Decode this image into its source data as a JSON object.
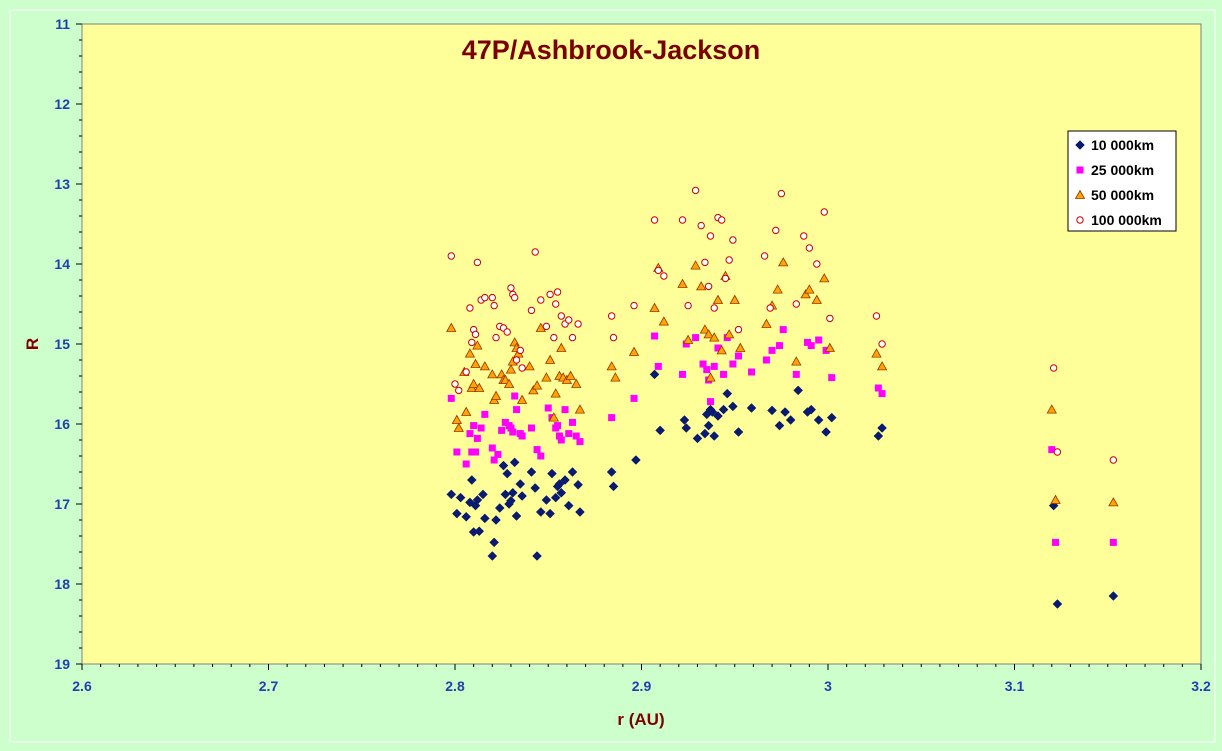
{
  "chart_data": {
    "type": "scatter",
    "title": "47P/Ashbrook-Jackson",
    "xlabel": "r (AU)",
    "ylabel": "R",
    "xlim": [
      2.6,
      3.2
    ],
    "ylim": [
      11,
      19
    ],
    "y_inverted": true,
    "x_ticks": [
      "2.6",
      "2.7",
      "2.8",
      "2.9",
      "3",
      "3.1",
      "3.2"
    ],
    "y_ticks": [
      "11",
      "12",
      "13",
      "14",
      "15",
      "16",
      "17",
      "18",
      "19"
    ],
    "grid": false,
    "legend_position": "top-right",
    "series": [
      {
        "name": "10 000km",
        "marker": "diamond",
        "color": "#0a1a6e",
        "x": [
          2.798,
          2.801,
          2.803,
          2.806,
          2.808,
          2.809,
          2.81,
          2.811,
          2.812,
          2.813,
          2.815,
          2.816,
          2.82,
          2.821,
          2.822,
          2.824,
          2.826,
          2.827,
          2.828,
          2.829,
          2.83,
          2.831,
          2.832,
          2.833,
          2.835,
          2.836,
          2.841,
          2.843,
          2.844,
          2.846,
          2.849,
          2.851,
          2.852,
          2.854,
          2.855,
          2.856,
          2.857,
          2.859,
          2.861,
          2.863,
          2.866,
          2.867,
          2.884,
          2.885,
          2.897,
          2.907,
          2.91,
          2.923,
          2.924,
          2.93,
          2.934,
          2.935,
          2.936,
          2.937,
          2.938,
          2.939,
          2.941,
          2.944,
          2.946,
          2.949,
          2.952,
          2.959,
          2.97,
          2.974,
          2.977,
          2.98,
          2.984,
          2.989,
          2.991,
          2.995,
          2.999,
          3.002,
          3.027,
          3.029,
          3.121,
          3.123,
          3.153
        ],
        "y": [
          16.88,
          17.12,
          16.92,
          17.16,
          16.98,
          16.7,
          17.35,
          17.02,
          16.95,
          17.34,
          16.88,
          17.18,
          17.65,
          17.48,
          17.2,
          17.05,
          16.52,
          16.88,
          16.62,
          17.0,
          16.96,
          16.86,
          16.48,
          17.15,
          16.75,
          16.9,
          16.6,
          16.8,
          17.65,
          17.1,
          16.95,
          17.12,
          16.62,
          16.92,
          16.78,
          16.75,
          16.86,
          16.7,
          17.02,
          16.6,
          16.76,
          17.1,
          16.6,
          16.78,
          16.45,
          15.38,
          16.08,
          15.95,
          16.05,
          16.18,
          16.12,
          15.88,
          16.02,
          15.82,
          15.85,
          16.15,
          15.9,
          15.82,
          15.62,
          15.78,
          16.1,
          15.8,
          15.83,
          16.02,
          15.85,
          15.95,
          15.58,
          15.85,
          15.82,
          15.95,
          16.1,
          15.92,
          16.15,
          16.05,
          17.02,
          18.25,
          18.15
        ]
      },
      {
        "name": "25 000km",
        "marker": "square",
        "color": "#ff00ff",
        "x": [
          2.798,
          2.801,
          2.806,
          2.808,
          2.809,
          2.81,
          2.811,
          2.812,
          2.814,
          2.816,
          2.82,
          2.821,
          2.823,
          2.825,
          2.827,
          2.829,
          2.83,
          2.831,
          2.832,
          2.833,
          2.835,
          2.836,
          2.841,
          2.844,
          2.846,
          2.85,
          2.852,
          2.854,
          2.855,
          2.856,
          2.857,
          2.859,
          2.861,
          2.863,
          2.865,
          2.867,
          2.884,
          2.896,
          2.907,
          2.909,
          2.922,
          2.924,
          2.929,
          2.933,
          2.935,
          2.936,
          2.937,
          2.939,
          2.941,
          2.944,
          2.946,
          2.949,
          2.952,
          2.959,
          2.967,
          2.97,
          2.974,
          2.976,
          2.983,
          2.989,
          2.991,
          2.995,
          2.999,
          3.002,
          3.027,
          3.029,
          3.12,
          3.122,
          3.153
        ],
        "y": [
          15.68,
          16.35,
          16.5,
          16.12,
          16.35,
          16.02,
          16.35,
          16.18,
          16.05,
          15.88,
          16.3,
          16.45,
          16.38,
          16.08,
          15.98,
          16.02,
          16.05,
          16.1,
          15.65,
          15.82,
          16.12,
          16.15,
          16.05,
          16.32,
          16.4,
          15.8,
          15.92,
          16.05,
          16.02,
          16.15,
          16.2,
          15.82,
          16.12,
          15.98,
          16.15,
          16.22,
          15.92,
          15.68,
          14.9,
          15.28,
          15.38,
          15.0,
          14.92,
          15.25,
          15.32,
          15.45,
          15.72,
          15.28,
          15.05,
          15.38,
          14.92,
          15.25,
          15.15,
          15.35,
          15.2,
          15.08,
          15.02,
          14.82,
          15.38,
          14.98,
          15.02,
          14.95,
          15.08,
          15.42,
          15.55,
          15.62,
          16.32,
          17.48,
          17.48
        ]
      },
      {
        "name": "50 000km",
        "marker": "triangle",
        "color": "#ffa500",
        "x": [
          2.798,
          2.801,
          2.802,
          2.805,
          2.806,
          2.808,
          2.809,
          2.81,
          2.811,
          2.812,
          2.813,
          2.816,
          2.82,
          2.821,
          2.822,
          2.825,
          2.826,
          2.827,
          2.829,
          2.83,
          2.831,
          2.832,
          2.833,
          2.834,
          2.836,
          2.84,
          2.842,
          2.844,
          2.846,
          2.849,
          2.851,
          2.853,
          2.854,
          2.856,
          2.857,
          2.858,
          2.86,
          2.862,
          2.865,
          2.867,
          2.884,
          2.886,
          2.896,
          2.907,
          2.909,
          2.912,
          2.922,
          2.925,
          2.929,
          2.932,
          2.934,
          2.936,
          2.937,
          2.939,
          2.941,
          2.943,
          2.945,
          2.947,
          2.95,
          2.953,
          2.967,
          2.97,
          2.973,
          2.976,
          2.983,
          2.988,
          2.99,
          2.994,
          2.998,
          3.001,
          3.026,
          3.029,
          3.12,
          3.122,
          3.153
        ],
        "y": [
          14.8,
          15.95,
          16.05,
          15.35,
          15.85,
          15.12,
          15.55,
          15.5,
          15.25,
          15.02,
          15.55,
          15.28,
          15.38,
          15.7,
          15.65,
          15.38,
          15.45,
          15.45,
          15.5,
          15.32,
          15.22,
          14.98,
          15.05,
          15.12,
          15.7,
          15.28,
          15.58,
          15.52,
          14.8,
          15.42,
          15.2,
          15.92,
          15.62,
          15.4,
          15.05,
          15.42,
          15.45,
          15.4,
          15.5,
          15.82,
          15.28,
          15.42,
          15.1,
          14.55,
          14.05,
          14.72,
          14.25,
          14.95,
          14.02,
          14.28,
          14.82,
          14.88,
          15.42,
          14.92,
          14.45,
          15.08,
          14.15,
          14.88,
          14.45,
          15.05,
          14.75,
          14.52,
          14.32,
          13.98,
          15.22,
          14.38,
          14.32,
          14.45,
          14.18,
          15.05,
          15.12,
          15.28,
          15.82,
          16.95,
          16.98
        ]
      },
      {
        "name": "100 000km",
        "marker": "circle",
        "color": "#cc0000",
        "x": [
          2.798,
          2.8,
          2.802,
          2.806,
          2.808,
          2.809,
          2.81,
          2.811,
          2.812,
          2.814,
          2.816,
          2.82,
          2.821,
          2.822,
          2.824,
          2.826,
          2.828,
          2.83,
          2.831,
          2.832,
          2.833,
          2.835,
          2.836,
          2.841,
          2.843,
          2.846,
          2.849,
          2.851,
          2.853,
          2.854,
          2.855,
          2.857,
          2.859,
          2.861,
          2.863,
          2.866,
          2.884,
          2.885,
          2.896,
          2.907,
          2.909,
          2.912,
          2.922,
          2.925,
          2.929,
          2.932,
          2.934,
          2.936,
          2.937,
          2.939,
          2.941,
          2.943,
          2.945,
          2.947,
          2.949,
          2.952,
          2.966,
          2.969,
          2.972,
          2.975,
          2.983,
          2.987,
          2.99,
          2.994,
          2.998,
          3.001,
          3.026,
          3.029,
          3.121,
          3.123,
          3.153
        ],
        "y": [
          13.9,
          15.5,
          15.58,
          15.35,
          14.55,
          14.98,
          14.82,
          14.88,
          13.98,
          14.45,
          14.42,
          14.42,
          14.52,
          14.92,
          14.78,
          14.8,
          14.85,
          14.3,
          14.38,
          14.42,
          15.2,
          15.08,
          15.3,
          14.58,
          13.85,
          14.45,
          14.78,
          14.38,
          14.92,
          14.5,
          14.35,
          14.65,
          14.75,
          14.7,
          14.92,
          14.75,
          14.65,
          14.92,
          14.52,
          13.45,
          14.08,
          14.15,
          13.45,
          14.52,
          13.08,
          13.52,
          13.98,
          14.28,
          13.65,
          14.55,
          13.42,
          13.45,
          14.18,
          13.95,
          13.7,
          14.82,
          13.9,
          14.55,
          13.58,
          13.12,
          14.5,
          13.65,
          13.8,
          14.0,
          13.35,
          14.68,
          14.65,
          15.0,
          15.3,
          16.35,
          16.45
        ]
      }
    ]
  }
}
